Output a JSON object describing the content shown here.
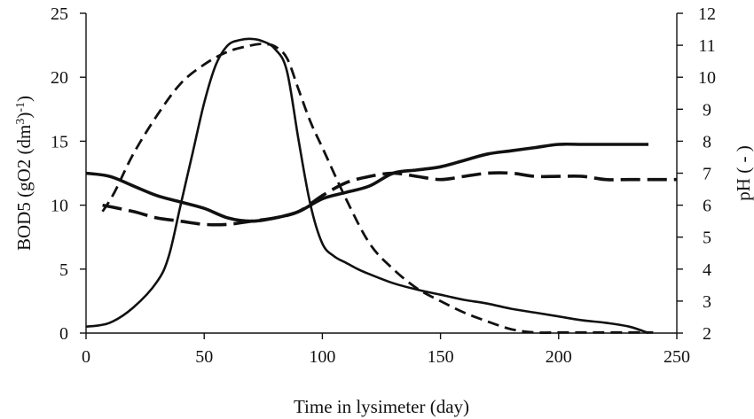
{
  "chart_data": {
    "type": "line",
    "title": "",
    "xlabel": "Time in lysimeter (day)",
    "ylabel": "BOD5 (gO2 (dm3)-1)",
    "ylabel_parts": {
      "base": "BOD5 (gO2 (dm",
      "sup1": "3",
      "mid": ")",
      "sup2": "-1",
      "end": ")"
    },
    "y2label": "pH ( - )",
    "xlim": [
      0,
      250
    ],
    "ylim": [
      0,
      25
    ],
    "y2lim": [
      2,
      12
    ],
    "xticks": [
      0,
      50,
      100,
      150,
      200,
      250
    ],
    "yticks": [
      0,
      5,
      10,
      15,
      20,
      25
    ],
    "y2ticks": [
      2,
      3,
      4,
      5,
      6,
      7,
      8,
      9,
      10,
      11,
      12
    ],
    "grid": false,
    "legend": "none",
    "series": [
      {
        "axis": "left",
        "style": "solid",
        "x": [
          0,
          10,
          20,
          30,
          35,
          40,
          45,
          50,
          55,
          60,
          65,
          70,
          75,
          80,
          85,
          90,
          95,
          100,
          105,
          110,
          115,
          120,
          130,
          140,
          150,
          160,
          170,
          180,
          190,
          200,
          210,
          220,
          230,
          238
        ],
        "y": [
          0.5,
          0.8,
          2,
          4,
          6,
          10,
          14,
          18,
          21,
          22.5,
          22.9,
          23,
          22.8,
          22.2,
          20.5,
          15,
          10,
          7,
          6,
          5.5,
          5,
          4.6,
          3.9,
          3.4,
          3.0,
          2.6,
          2.3,
          1.9,
          1.6,
          1.3,
          1.0,
          0.8,
          0.5,
          0.0
        ]
      },
      {
        "axis": "left",
        "style": "dashed",
        "x": [
          7,
          12,
          20,
          30,
          40,
          50,
          60,
          70,
          75,
          80,
          85,
          90,
          95,
          100,
          110,
          120,
          130,
          140,
          150,
          160,
          170,
          180,
          190,
          200,
          210,
          220,
          240
        ],
        "y": [
          9.5,
          11,
          14,
          17,
          19.5,
          21,
          22,
          22.5,
          22.6,
          22.4,
          21.5,
          19,
          16.5,
          14.5,
          10.5,
          7,
          5,
          3.5,
          2.5,
          1.6,
          0.9,
          0.3,
          0.05,
          0.05,
          0.05,
          0.05,
          0.05
        ]
      },
      {
        "axis": "right",
        "style": "solid-thick",
        "x": [
          0,
          10,
          20,
          30,
          40,
          50,
          60,
          70,
          80,
          90,
          100,
          110,
          120,
          130,
          140,
          150,
          160,
          170,
          180,
          190,
          200,
          210,
          220,
          230,
          238
        ],
        "y": [
          7.0,
          6.9,
          6.6,
          6.3,
          6.1,
          5.9,
          5.6,
          5.5,
          5.6,
          5.8,
          6.2,
          6.4,
          6.6,
          7.0,
          7.1,
          7.2,
          7.4,
          7.6,
          7.7,
          7.8,
          7.9,
          7.9,
          7.9,
          7.9,
          7.9
        ]
      },
      {
        "axis": "right",
        "style": "dashed-thick",
        "x": [
          7,
          20,
          30,
          40,
          50,
          60,
          70,
          80,
          90,
          100,
          110,
          120,
          130,
          140,
          150,
          160,
          170,
          180,
          190,
          200,
          210,
          220,
          230,
          250
        ],
        "y": [
          6.0,
          5.8,
          5.6,
          5.5,
          5.4,
          5.4,
          5.5,
          5.6,
          5.8,
          6.3,
          6.7,
          6.9,
          7.0,
          6.9,
          6.8,
          6.9,
          7.0,
          7.0,
          6.9,
          6.9,
          6.9,
          6.8,
          6.8,
          6.8
        ]
      }
    ]
  }
}
